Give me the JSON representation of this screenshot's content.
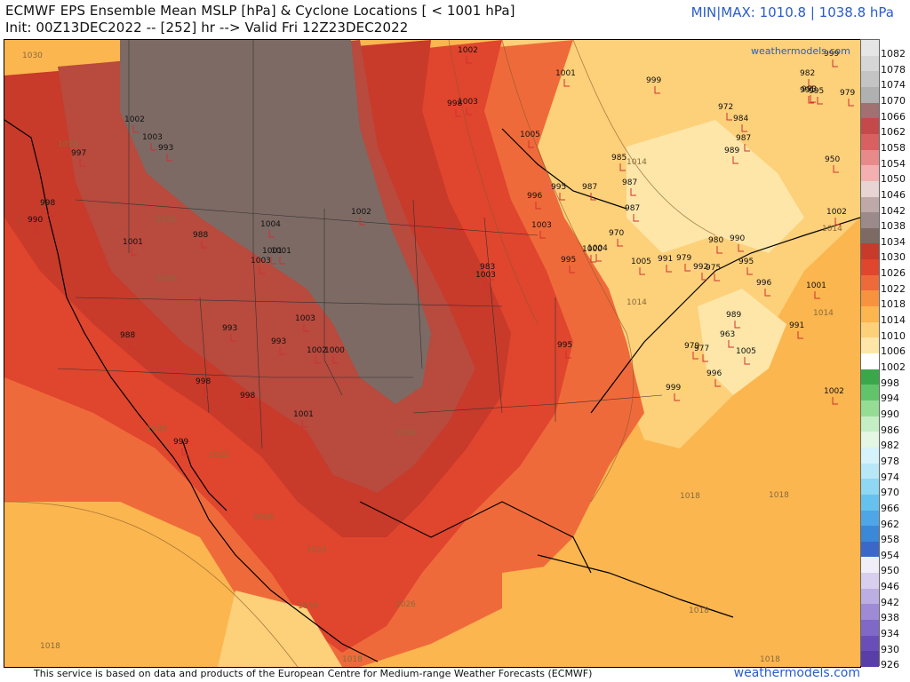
{
  "header": {
    "title": "ECMWF EPS Ensemble Mean MSLP [hPa] & Cyclone Locations [ < 1001 hPa]",
    "subtitle": "Init: 00Z13DEC2022 -- [252] hr --> Valid Fri 12Z23DEC2022",
    "minmax": "MIN|MAX: 1010.8 | 1038.8 hPa"
  },
  "footer": {
    "attribution": "This service is based on data and products of the European Centre for Medium-range Weather Forecasts (ECMWF)",
    "site": "weathermodels.com"
  },
  "map_watermark": "weathermodels.com",
  "legend": {
    "labels": [
      "1082",
      "1078",
      "1074",
      "1070",
      "1066",
      "1062",
      "1058",
      "1054",
      "1050",
      "1046",
      "1042",
      "1038",
      "1034",
      "1030",
      "1026",
      "1022",
      "1018",
      "1014",
      "1010",
      "1006",
      "1002",
      "998",
      "994",
      "990",
      "986",
      "982",
      "978",
      "974",
      "970",
      "966",
      "962",
      "958",
      "954",
      "950",
      "946",
      "942",
      "938",
      "934",
      "930",
      "926"
    ],
    "colors": [
      "#e6e6e6",
      "#d6d6d6",
      "#c4c4c4",
      "#b0b0b0",
      "#a17070",
      "#c44a4a",
      "#d86060",
      "#e88a8a",
      "#f4b0b0",
      "#e9d4d4",
      "#bfa8a8",
      "#9c8a8a",
      "#7d6a64",
      "#c83a2a",
      "#e0452e",
      "#ef6a3a",
      "#f7933f",
      "#fbb64f",
      "#fdd07a",
      "#fde6a8",
      "#ffffff",
      "#3aa84a",
      "#62c46a",
      "#95dd95",
      "#c4efc4",
      "#e4f7e4",
      "#d6f3fb",
      "#b8e8f8",
      "#8fd7f3",
      "#67c1ee",
      "#4ea6e6",
      "#3b87d8",
      "#3b67c8",
      "#f2eef7",
      "#d8cfee",
      "#bcaee3",
      "#9f8ad6",
      "#8068c6",
      "#6a4eb8",
      "#5a3ea8"
    ]
  },
  "isobar_labels": [
    "1030",
    "1030",
    "1022",
    "1018",
    "1018",
    "1018",
    "1014",
    "1014",
    "1014",
    "1018",
    "1026",
    "1026",
    "1018",
    "1022",
    "1018",
    "1034",
    "1030",
    "1026",
    "1014",
    "1018",
    "1018"
  ],
  "cyclones": [
    "1002",
    "1003",
    "993",
    "997",
    "990",
    "998",
    "1001",
    "1001",
    "988",
    "1004",
    "1002",
    "1003",
    "1001",
    "1003",
    "993",
    "993",
    "1002",
    "1000",
    "998",
    "998",
    "1001",
    "988",
    "999",
    "1002",
    "998",
    "1003",
    "1005",
    "983",
    "1003",
    "996",
    "995",
    "987",
    "987",
    "987",
    "1001",
    "999",
    "972",
    "984",
    "987",
    "989",
    "950",
    "991",
    "999",
    "982",
    "979",
    "993",
    "995",
    "1002",
    "970",
    "1000",
    "1005",
    "991",
    "979",
    "992",
    "975",
    "980",
    "990",
    "995",
    "996",
    "1001",
    "989",
    "963",
    "991",
    "979",
    "977",
    "1005",
    "996",
    "999",
    "995",
    "1002",
    "1004",
    "1003",
    "995",
    "985"
  ]
}
